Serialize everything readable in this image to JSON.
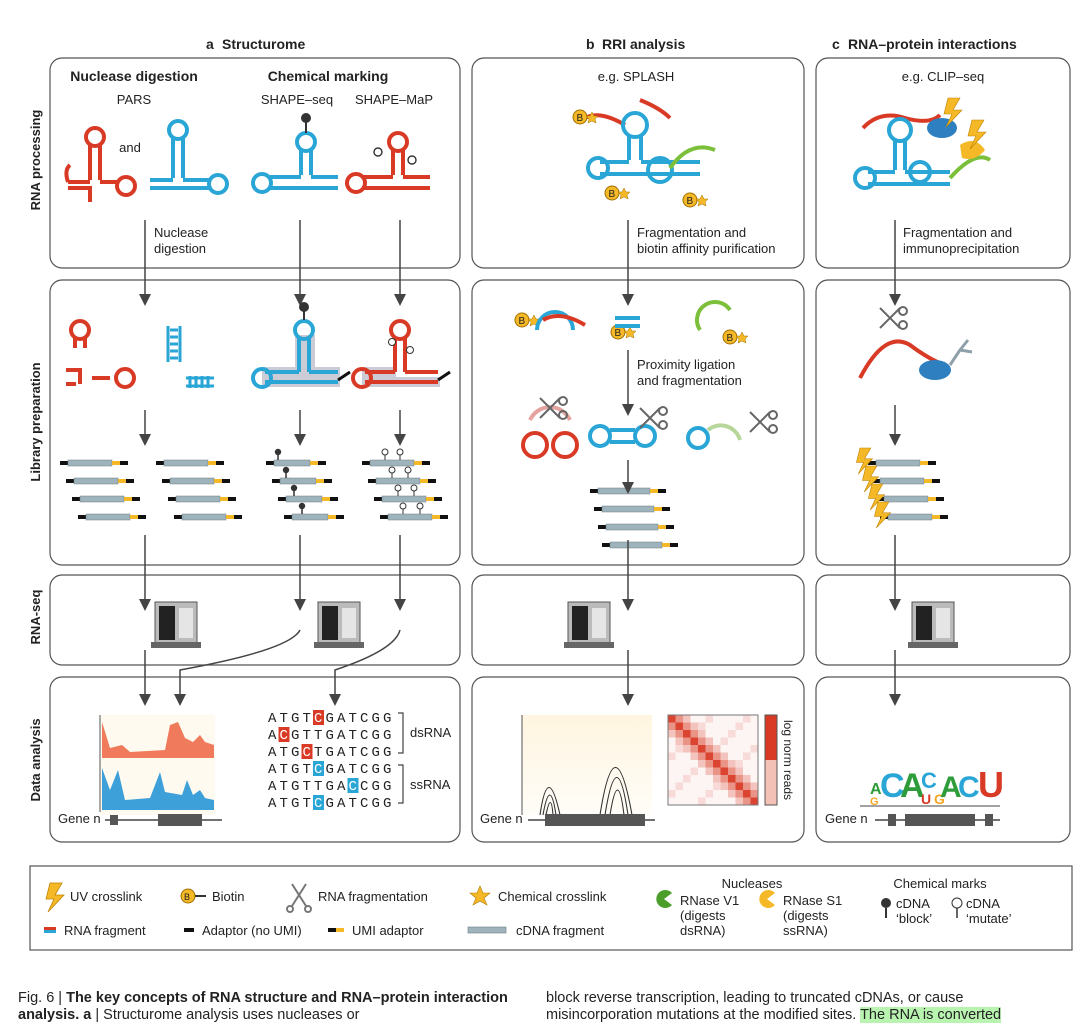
{
  "panels": {
    "a": {
      "letter": "a",
      "title": "Structurome"
    },
    "b": {
      "letter": "b",
      "title": "RRI analysis"
    },
    "c": {
      "letter": "c",
      "title": "RNA–protein interactions"
    }
  },
  "rows": [
    "RNA processing",
    "Library preparation",
    "RNA-seq",
    "Data analysis"
  ],
  "structurome": {
    "nuclease_heading": "Nuclease digestion",
    "chemical_heading": "Chemical marking",
    "pars": "PARS",
    "shape_seq": "SHAPE–seq",
    "shape_map": "SHAPE–MaP",
    "and": "and",
    "step1": [
      "Nuclease",
      "digestion"
    ],
    "seq_ds": [
      "ATGTCGATCGG",
      "ACGTTGATCGG",
      "ATGCTGATCGG"
    ],
    "seq_ss": [
      "ATGTCGATCGG",
      "ATGTTGACCGG",
      "ATGTCGATCGG"
    ],
    "ds_label": "dsRNA",
    "ss_label": "ssRNA",
    "gene": "Gene n"
  },
  "rri": {
    "example": "e.g. SPLASH",
    "step1": [
      "Fragmentation and",
      "biotin affinity purification"
    ],
    "step2": [
      "Proximity ligation",
      "and fragmentation"
    ],
    "heatmap_label": "log norm reads",
    "gene": "Gene n",
    "biotin": "B"
  },
  "clip": {
    "example": "e.g. CLIP–seq",
    "step1": [
      "Fragmentation and",
      "immunoprecipitation"
    ],
    "motif": [
      "A",
      "G",
      "C",
      "A",
      "C",
      "U",
      "G",
      "A",
      "C",
      "U"
    ],
    "gene": "Gene n"
  },
  "legend": {
    "uv": "UV crosslink",
    "biotin": "Biotin",
    "rna_frag": "RNA fragmentation",
    "chem_xlink": "Chemical crosslink",
    "nucleases": "Nucleases",
    "rnase_v1": [
      "RNase V1",
      "(digests",
      "dsRNA)"
    ],
    "rnase_s1": [
      "RNase S1",
      "(digests",
      "ssRNA)"
    ],
    "chem_marks": "Chemical marks",
    "cdna_block": [
      "cDNA",
      "‘block’"
    ],
    "cdna_mutate": [
      "cDNA",
      "‘mutate’"
    ],
    "rna_fragment": "RNA fragment",
    "adaptor": "Adaptor (no UMI)",
    "umi": "UMI adaptor",
    "cdna_fragment": "cDNA fragment",
    "b_glyph": "B"
  },
  "caption": {
    "fig": "Fig. 6 | ",
    "title": "The key concepts of RNA structure and RNA–protein interaction analysis.",
    "a": " a",
    "left_rest": " | Structurome analysis uses nucleases or",
    "right_line1": "block reverse transcription, leading to truncated cDNAs, or cause",
    "right_line2a": "misincorporation mutations at the modified sites.",
    "right_line2b": "The RNA is converted"
  },
  "colors": {
    "red": "#d83a25",
    "blue": "#2aa6d6",
    "green": "#7bbf3a",
    "yellow": "#f5b827",
    "grey": "#9fb3bc",
    "dark": "#444"
  }
}
